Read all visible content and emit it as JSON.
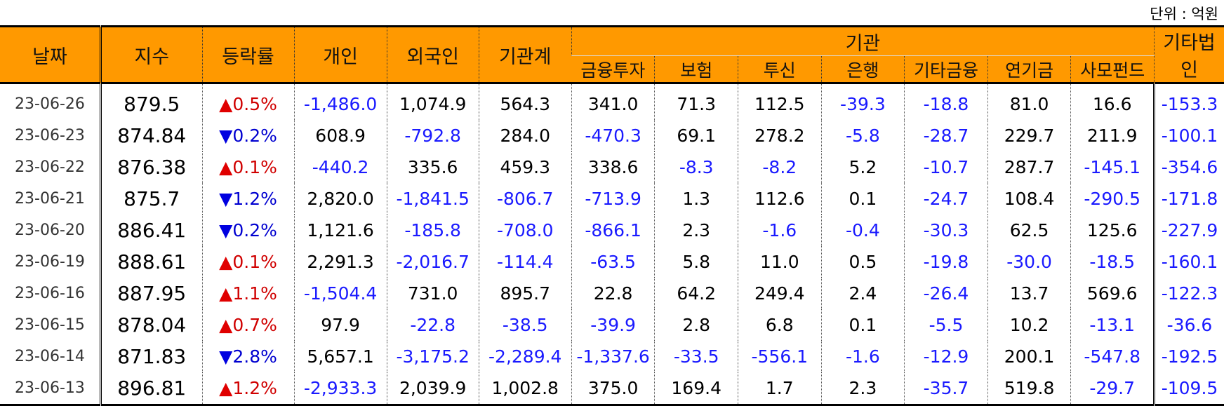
{
  "unit": "단위 : 억원",
  "headers": {
    "date": "날짜",
    "index": "지수",
    "change": "등락률",
    "individual": "개인",
    "foreign": "외국인",
    "inst_total": "기관계",
    "institution": "기관",
    "sub": [
      "금융투자",
      "보험",
      "투신",
      "은행",
      "기타금융",
      "연기금",
      "사모펀드"
    ],
    "other_corp": "기타법인"
  },
  "colors": {
    "header_bg": "#ff9900",
    "negative": "#1a1aff",
    "up": "#e00000",
    "down": "#0000e0"
  },
  "rows": [
    {
      "date": "23-06-26",
      "index": "879.5",
      "dir": "up",
      "chg": "0.5%",
      "vals": [
        "-1,486.0",
        "1,074.9",
        "564.3",
        "341.0",
        "71.3",
        "112.5",
        "-39.3",
        "-18.8",
        "81.0",
        "16.6",
        "-153.3"
      ]
    },
    {
      "date": "23-06-23",
      "index": "874.84",
      "dir": "down",
      "chg": "0.2%",
      "vals": [
        "608.9",
        "-792.8",
        "284.0",
        "-470.3",
        "69.1",
        "278.2",
        "-5.8",
        "-28.7",
        "229.7",
        "211.9",
        "-100.1"
      ]
    },
    {
      "date": "23-06-22",
      "index": "876.38",
      "dir": "up",
      "chg": "0.1%",
      "vals": [
        "-440.2",
        "335.6",
        "459.3",
        "338.6",
        "-8.3",
        "-8.2",
        "5.2",
        "-10.7",
        "287.7",
        "-145.1",
        "-354.6"
      ]
    },
    {
      "date": "23-06-21",
      "index": "875.7",
      "dir": "down",
      "chg": "1.2%",
      "vals": [
        "2,820.0",
        "-1,841.5",
        "-806.7",
        "-713.9",
        "1.3",
        "112.6",
        "0.1",
        "-24.7",
        "108.4",
        "-290.5",
        "-171.8"
      ]
    },
    {
      "date": "23-06-20",
      "index": "886.41",
      "dir": "down",
      "chg": "0.2%",
      "vals": [
        "1,121.6",
        "-185.8",
        "-708.0",
        "-866.1",
        "2.3",
        "-1.6",
        "-0.4",
        "-30.3",
        "62.5",
        "125.6",
        "-227.9"
      ]
    },
    {
      "date": "23-06-19",
      "index": "888.61",
      "dir": "up",
      "chg": "0.1%",
      "vals": [
        "2,291.3",
        "-2,016.7",
        "-114.4",
        "-63.5",
        "5.8",
        "11.0",
        "0.5",
        "-19.8",
        "-30.0",
        "-18.5",
        "-160.1"
      ]
    },
    {
      "date": "23-06-16",
      "index": "887.95",
      "dir": "up",
      "chg": "1.1%",
      "vals": [
        "-1,504.4",
        "731.0",
        "895.7",
        "22.8",
        "64.2",
        "249.4",
        "2.4",
        "-26.4",
        "13.7",
        "569.6",
        "-122.3"
      ]
    },
    {
      "date": "23-06-15",
      "index": "878.04",
      "dir": "up",
      "chg": "0.7%",
      "vals": [
        "97.9",
        "-22.8",
        "-38.5",
        "-39.9",
        "2.8",
        "6.8",
        "0.1",
        "-5.5",
        "10.2",
        "-13.1",
        "-36.6"
      ]
    },
    {
      "date": "23-06-14",
      "index": "871.83",
      "dir": "down",
      "chg": "2.8%",
      "vals": [
        "5,657.1",
        "-3,175.2",
        "-2,289.4",
        "-1,337.6",
        "-33.5",
        "-556.1",
        "-1.6",
        "-12.9",
        "200.1",
        "-547.8",
        "-192.5"
      ]
    },
    {
      "date": "23-06-13",
      "index": "896.81",
      "dir": "up",
      "chg": "1.2%",
      "vals": [
        "-2,933.3",
        "2,039.9",
        "1,002.8",
        "375.0",
        "169.4",
        "1.7",
        "2.3",
        "-35.7",
        "519.8",
        "-29.7",
        "-109.5"
      ]
    }
  ]
}
